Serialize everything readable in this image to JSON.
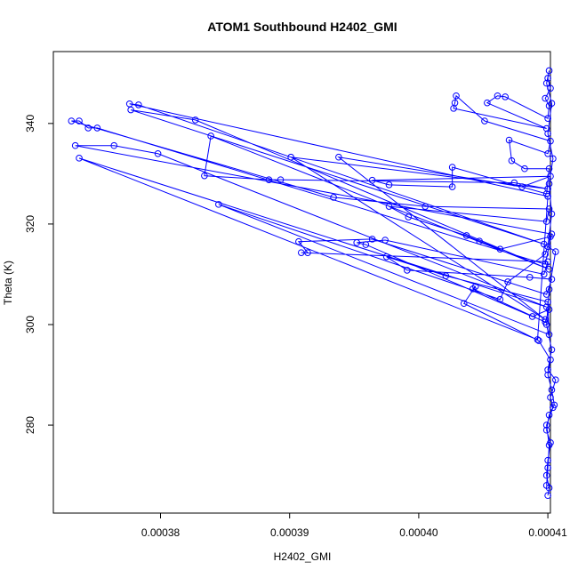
{
  "chart_data": {
    "type": "line",
    "title": "ATOM1 Southbound H2402_GMI",
    "x_label": "H2402_GMI",
    "y_label": "Theta (K)",
    "color": "#0000ff",
    "markers": "open-circle",
    "xlim": [
      0.0003717,
      0.0004102
    ],
    "ylim": [
      262.5,
      354.3
    ],
    "xticks": [
      0.00038,
      0.00039,
      {
        "value": 0.0004,
        "label": "0.00040"
      },
      0.00041
    ],
    "yticks": [
      280,
      300,
      320,
      340
    ],
    "x": [
      0.00041,
      0.0004101,
      0.0004099,
      0.00041,
      0.0004102,
      0.0004099,
      0.0004101,
      0.0004105,
      0.0004103,
      0.00041,
      0.0004102,
      0.0004093,
      0.0004035,
      0.0004044,
      0.0004042,
      0.0004098,
      0.0004101,
      0.0004088,
      0.0003959,
      0.0003952,
      0.0003974,
      0.0004097,
      0.00041,
      0.0003909,
      0.0003914,
      0.0003907,
      0.0003964,
      0.0004099,
      0.0004103,
      0.0004086,
      0.0003991,
      0.0003975,
      0.0004021,
      0.00041,
      0.0004101,
      0.0003845,
      0.0004063,
      0.0004069,
      0.0004098,
      0.0004102,
      0.0004063,
      0.0004047,
      0.0004037,
      0.0003992,
      0.0003977,
      0.0004099,
      0.0004101,
      0.0004005,
      0.0003934,
      0.0003731,
      0.0003737,
      0.0003744,
      0.0003751,
      0.0004098,
      0.0004103,
      0.0003734,
      0.0003764,
      0.0003798,
      0.0004099,
      0.0003737,
      0.0004092,
      0.00041,
      0.0003776,
      0.0003783,
      0.0004097,
      0.0003777,
      0.0003827,
      0.0004101,
      0.0003839,
      0.0003834,
      0.0003884,
      0.0003893,
      0.0004074,
      0.00041,
      0.0003901,
      0.0004098,
      0.0003938,
      0.000408,
      0.0004102,
      0.0003964,
      0.0003977,
      0.0004026,
      0.0004026,
      0.0004099,
      0.0004101,
      0.0004082,
      0.0004072,
      0.000407,
      0.00041,
      0.0004102,
      0.0004051,
      0.0004029,
      0.0004028,
      0.0004027,
      0.0004099,
      0.0004053,
      0.0004061,
      0.0004067,
      0.00041,
      0.0004101,
      0.0004098,
      0.0004102,
      0.00041,
      0.0004101,
      0.0004099,
      0.0004103,
      0.00041,
      0.0004104,
      0.0004101,
      0.0004103,
      0.00041,
      0.0004106,
      0.0004101,
      0.0004099,
      0.0004103,
      0.00041,
      0.0004106,
      0.0004102,
      0.0004104,
      0.0004099,
      0.0004101,
      0.00041,
      0.0004099
    ],
    "values": [
      266.0,
      267.5,
      270.0,
      273.0,
      276.5,
      279.0,
      282.0,
      284.0,
      287.0,
      290.0,
      293.0,
      296.8,
      304.2,
      307.6,
      307.1,
      300.5,
      303.0,
      301.6,
      315.9,
      316.3,
      316.8,
      310.0,
      312.5,
      314.3,
      314.3,
      316.5,
      317.0,
      306.0,
      309.0,
      309.4,
      310.8,
      313.5,
      309.7,
      304.5,
      298.0,
      323.9,
      305.0,
      308.5,
      314.0,
      317.5,
      315.0,
      316.6,
      317.7,
      321.4,
      323.5,
      320.5,
      323.0,
      323.5,
      325.3,
      340.5,
      340.5,
      339.1,
      339.1,
      312.0,
      318.0,
      335.6,
      335.6,
      334.0,
      303.5,
      333.1,
      297.0,
      325.5,
      343.9,
      343.7,
      316.0,
      342.7,
      340.7,
      311.0,
      337.5,
      329.6,
      328.8,
      328.8,
      328.2,
      327.0,
      333.3,
      301.0,
      333.3,
      327.4,
      329.5,
      328.7,
      327.8,
      327.4,
      331.3,
      326.0,
      331.0,
      331.0,
      332.6,
      336.7,
      334.0,
      336.5,
      340.5,
      345.5,
      344.1,
      343.0,
      339.0,
      344.1,
      345.5,
      345.3,
      341.0,
      343.5,
      345.0,
      347.0,
      349.0,
      350.5,
      348.0,
      344.0,
      338.0,
      333.0,
      328.0,
      322.0,
      315.5,
      314.5,
      307.0,
      300.0,
      295.0,
      291.0,
      289.0,
      285.5,
      283.5,
      280.0,
      276.0,
      271.5,
      268.0
    ]
  }
}
